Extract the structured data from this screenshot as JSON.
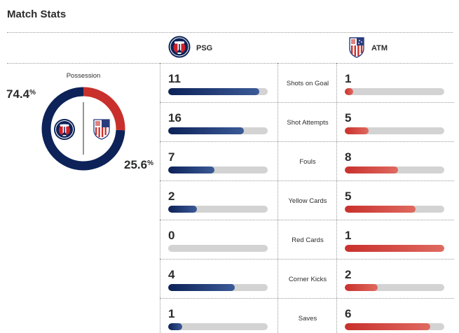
{
  "header": {
    "title": "Match Stats"
  },
  "teams": {
    "home": {
      "abbr": "PSG",
      "color": "#0c2258"
    },
    "away": {
      "abbr": "ATM",
      "color": "#c9302c"
    }
  },
  "possession": {
    "label": "Possession",
    "home_pct": 74.4,
    "away_pct": 25.6,
    "home_text": "74.4",
    "away_text": "25.6",
    "suffix": "%"
  },
  "stats": [
    {
      "label": "Shots on Goal",
      "home": 11,
      "away": 1,
      "home_text": "11",
      "away_text": "1"
    },
    {
      "label": "Shot Attempts",
      "home": 16,
      "away": 5,
      "home_text": "16",
      "away_text": "5"
    },
    {
      "label": "Fouls",
      "home": 7,
      "away": 8,
      "home_text": "7",
      "away_text": "8"
    },
    {
      "label": "Yellow Cards",
      "home": 2,
      "away": 5,
      "home_text": "2",
      "away_text": "5"
    },
    {
      "label": "Red Cards",
      "home": 0,
      "away": 1,
      "home_text": "0",
      "away_text": "1"
    },
    {
      "label": "Corner Kicks",
      "home": 4,
      "away": 2,
      "home_text": "4",
      "away_text": "2"
    },
    {
      "label": "Saves",
      "home": 1,
      "away": 6,
      "home_text": "1",
      "away_text": "6"
    }
  ]
}
